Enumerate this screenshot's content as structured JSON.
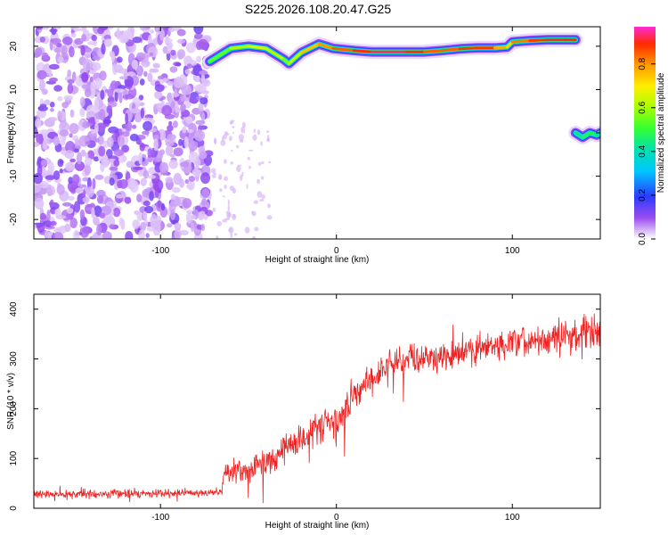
{
  "title": "S225.2026.108.20.47.G25",
  "chart_data": [
    {
      "type": "heatmap",
      "xlabel": "Height of straight line (km)",
      "ylabel": "Frequency (Hz)",
      "xlim": [
        -172,
        150
      ],
      "ylim": [
        -24.5,
        24.5
      ],
      "xticks": [
        -100,
        0,
        100
      ],
      "yticks": [
        -20,
        -10,
        0,
        10,
        20
      ],
      "colorbar": {
        "label": "Normalized spectral amplitude",
        "range": [
          0,
          0.97
        ],
        "ticks": [
          0.0,
          0.2,
          0.4,
          0.6,
          0.8
        ]
      },
      "noise_region_x": [
        -172,
        -72
      ],
      "ridge": {
        "x": [
          -72,
          -60,
          -50,
          -40,
          -30,
          -27,
          -20,
          -10,
          -2,
          10,
          20,
          30,
          40,
          50,
          60,
          70,
          80,
          90,
          97,
          100,
          110,
          120,
          130,
          136
        ],
        "y": [
          16.5,
          19.5,
          20,
          19.5,
          17,
          16,
          18.5,
          20.5,
          19.5,
          19,
          18.7,
          18.7,
          18.7,
          18.7,
          19,
          19.4,
          19.6,
          19.6,
          19.8,
          21,
          21.3,
          21.5,
          21.5,
          21.5
        ],
        "amplitude": [
          0.5,
          0.6,
          0.65,
          0.7,
          0.6,
          0.55,
          0.75,
          0.8,
          0.85,
          0.9,
          0.95,
          0.97,
          0.95,
          0.9,
          0.85,
          0.9,
          0.92,
          0.9,
          0.7,
          0.8,
          0.9,
          0.92,
          0.95,
          0.9
        ]
      },
      "blob": {
        "x": [
          136,
          140,
          144,
          148,
          150
        ],
        "y": [
          0,
          -1,
          0,
          -0.5,
          0
        ],
        "amplitude": [
          0.4,
          0.45,
          0.5,
          0.45,
          0.4
        ]
      },
      "colors": {
        "ridge_core": "#ff2a00",
        "ridge_mid": "#33ff33",
        "ridge_edge": "#2a3cff",
        "noise": "#8a3cf0"
      }
    },
    {
      "type": "line",
      "xlabel": "Height of straight line (km)",
      "ylabel": "SNR (10 * v/v)",
      "xlim": [
        -172,
        150
      ],
      "ylim": [
        0,
        430
      ],
      "xticks": [
        -100,
        0,
        100
      ],
      "yticks": [
        0,
        100,
        200,
        300,
        400
      ],
      "series": [
        {
          "color": "#ee2222",
          "envelope": {
            "x": [
              -172,
              -150,
              -100,
              -65,
              -64,
              -50,
              -40,
              -30,
              -20,
              -10,
              -5,
              0,
              10,
              20,
              30,
              40,
              50,
              60,
              70,
              80,
              90,
              100,
              110,
              120,
              130,
              140,
              150
            ],
            "mean": [
              28,
              28,
              30,
              32,
              70,
              75,
              95,
              120,
              140,
              165,
              175,
              160,
              225,
              260,
              290,
              300,
              305,
              300,
              310,
              320,
              325,
              330,
              335,
              340,
              345,
              350,
              355
            ],
            "spread": [
              12,
              12,
              12,
              12,
              30,
              35,
              40,
              45,
              45,
              50,
              50,
              50,
              45,
              45,
              40,
              40,
              40,
              40,
              40,
              40,
              45,
              45,
              45,
              45,
              50,
              55,
              55
            ]
          }
        }
      ]
    }
  ]
}
